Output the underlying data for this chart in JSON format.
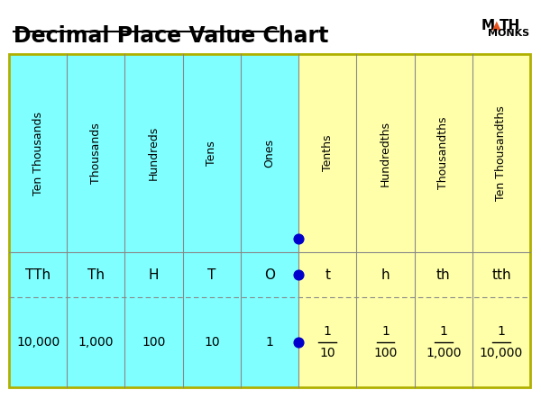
{
  "title": "Decimal Place Value Chart",
  "title_underline": true,
  "bg_color": "#ffffff",
  "cyan_color": "#7fffff",
  "yellow_color": "#ffffaa",
  "border_color": "#b0b000",
  "grid_color": "#aaaaaa",
  "dot_color": "#0000cc",
  "columns": [
    {
      "label": "Ten Thousands",
      "abbr": "TTh",
      "value": "10,000",
      "side": "cyan"
    },
    {
      "label": "Thousands",
      "abbr": "Th",
      "value": "1,000",
      "side": "cyan"
    },
    {
      "label": "Hundreds",
      "abbr": "H",
      "value": "100",
      "side": "cyan"
    },
    {
      "label": "Tens",
      "abbr": "T",
      "value": "10",
      "side": "cyan"
    },
    {
      "label": "Ones",
      "abbr": "O",
      "value": "1",
      "side": "cyan"
    },
    {
      "label": "Tenths",
      "abbr": "t",
      "value": "1/10",
      "side": "yellow"
    },
    {
      "label": "Hundredths",
      "abbr": "h",
      "value": "1/100",
      "side": "yellow"
    },
    {
      "label": "Thousandths",
      "abbr": "th",
      "value": "1/1,000",
      "side": "yellow"
    },
    {
      "label": "Ten Thousandths",
      "abbr": "tth",
      "value": "1/10,000",
      "side": "yellow"
    }
  ],
  "dot_between_cols": [
    4,
    5
  ],
  "logo_text1": "M▲TH",
  "logo_text2": "MONKS",
  "logo_color": "#e8531f"
}
